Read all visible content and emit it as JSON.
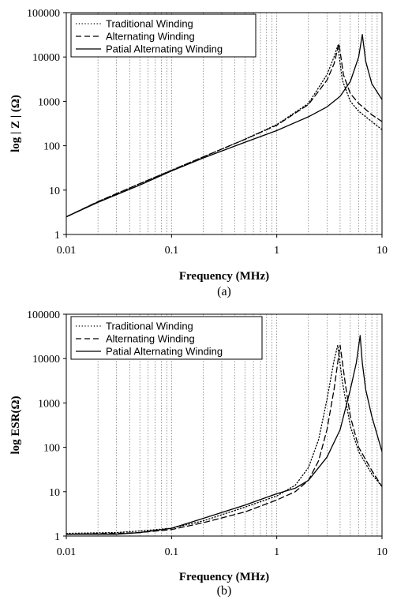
{
  "chart_data": [
    {
      "type": "line",
      "caption": "(a)",
      "xlabel": "Frequency (MHz)",
      "ylabel": "log | Z | (Ω)",
      "xscale": "log",
      "yscale": "log",
      "xlim": [
        0.01,
        10
      ],
      "ylim": [
        1,
        100000
      ],
      "xticks": [
        "0.01",
        "0.1",
        "1",
        "10"
      ],
      "yticks": [
        "1",
        "10",
        "100",
        "1000",
        "10000",
        "100000"
      ],
      "grid": "vertical minor and major",
      "legend_position": "top-left",
      "series": [
        {
          "name": "Traditional Winding",
          "style": "dotted",
          "x": [
            0.01,
            0.02,
            0.05,
            0.1,
            0.2,
            0.5,
            1,
            2,
            3,
            3.5,
            3.8,
            4.2,
            5,
            6,
            8,
            10
          ],
          "y": [
            2.5,
            5.5,
            14,
            28,
            56,
            140,
            300,
            900,
            4000,
            10000,
            18000,
            3000,
            1000,
            600,
            350,
            230
          ]
        },
        {
          "name": "Alternating Winding",
          "style": "dashed",
          "x": [
            0.01,
            0.02,
            0.05,
            0.1,
            0.2,
            0.5,
            1,
            2,
            3,
            3.5,
            3.9,
            4.3,
            5,
            6,
            8,
            10
          ],
          "y": [
            2.5,
            5.5,
            14,
            28,
            56,
            140,
            290,
            850,
            3000,
            7000,
            20000,
            4000,
            1500,
            900,
            500,
            350
          ]
        },
        {
          "name": "Patial Alternating Winding",
          "style": "solid",
          "x": [
            0.01,
            0.02,
            0.05,
            0.1,
            0.2,
            0.5,
            1,
            2,
            3,
            4,
            5,
            6,
            6.5,
            7,
            8,
            10
          ],
          "y": [
            2.5,
            5.3,
            13,
            27,
            53,
            120,
            220,
            450,
            750,
            1300,
            2800,
            10000,
            32000,
            8000,
            2500,
            1100
          ]
        }
      ]
    },
    {
      "type": "line",
      "caption": "(b)",
      "xlabel": "Frequency (MHz)",
      "ylabel": "log  ESR(Ω)",
      "xscale": "log",
      "yscale": "log",
      "xlim": [
        0.01,
        10
      ],
      "ylim": [
        1,
        100000
      ],
      "xticks": [
        "0.01",
        "0.1",
        "1",
        "10"
      ],
      "yticks": [
        "1",
        "10",
        "100",
        "1000",
        "10000",
        "100000"
      ],
      "grid": "vertical minor and major",
      "legend_position": "top-left",
      "series": [
        {
          "name": "Traditional Winding",
          "style": "dotted",
          "x": [
            0.01,
            0.03,
            0.05,
            0.1,
            0.2,
            0.5,
            1,
            1.5,
            2,
            2.5,
            3,
            3.5,
            3.8,
            4.2,
            5,
            6,
            8,
            10
          ],
          "y": [
            1.15,
            1.2,
            1.3,
            1.5,
            2.2,
            4.5,
            8,
            14,
            35,
            150,
            1200,
            9000,
            20000,
            3000,
            300,
            80,
            25,
            13
          ]
        },
        {
          "name": "Alternating Winding",
          "style": "dashed",
          "x": [
            0.01,
            0.03,
            0.05,
            0.1,
            0.2,
            0.5,
            1,
            1.5,
            2,
            2.5,
            3,
            3.5,
            4,
            4.5,
            5,
            6,
            8,
            10
          ],
          "y": [
            1.1,
            1.15,
            1.2,
            1.4,
            2,
            3.5,
            6.5,
            10,
            18,
            50,
            250,
            2000,
            20000,
            2500,
            500,
            100,
            30,
            13
          ]
        },
        {
          "name": "Patial Alternating Winding",
          "style": "solid",
          "x": [
            0.01,
            0.03,
            0.05,
            0.1,
            0.2,
            0.5,
            1,
            1.5,
            2,
            3,
            4,
            5,
            5.7,
            6.2,
            6.5,
            7,
            8,
            10
          ],
          "y": [
            1.1,
            1.1,
            1.2,
            1.5,
            2.5,
            5,
            9,
            12,
            18,
            60,
            250,
            2000,
            8000,
            33000,
            8000,
            2000,
            500,
            80
          ]
        }
      ]
    }
  ]
}
